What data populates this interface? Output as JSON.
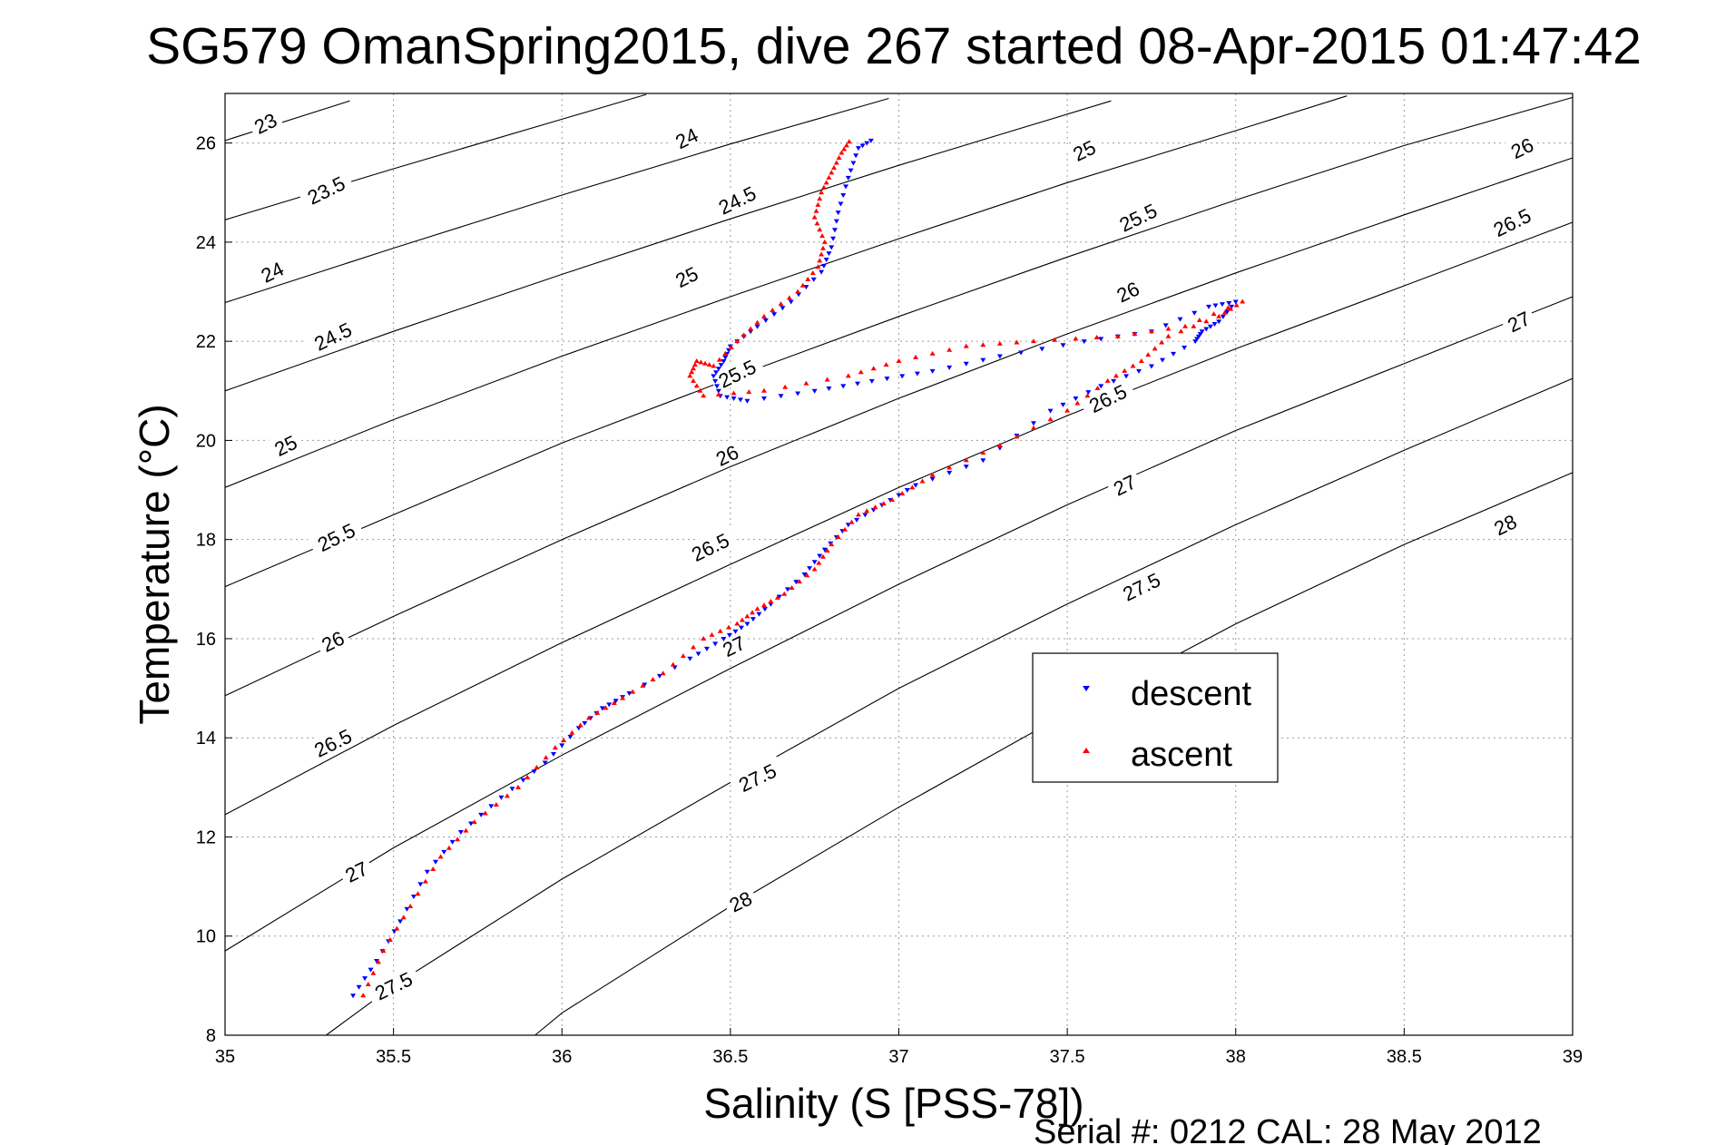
{
  "chart_data": {
    "type": "scatter",
    "title": "SG579 OmanSpring2015, dive 267 started 08-Apr-2015 01:47:42",
    "xlabel": "Salinity (S [PSS-78])",
    "ylabel": "Temperature (°C)",
    "xlim": [
      35,
      39
    ],
    "ylim": [
      8,
      27
    ],
    "x_ticks": [
      "35",
      "35.5",
      "36",
      "36.5",
      "37",
      "37.5",
      "38",
      "38.5",
      "39"
    ],
    "y_ticks": [
      "8",
      "10",
      "12",
      "14",
      "16",
      "18",
      "20",
      "22",
      "24",
      "26"
    ],
    "grid": true,
    "legend_position": "right",
    "series": [
      {
        "name": "descent",
        "color": "#0000ff",
        "marker": "triangle-down",
        "points": [
          [
            35.38,
            8.8
          ],
          [
            35.45,
            9.5
          ],
          [
            35.52,
            10.3
          ],
          [
            35.6,
            11.3
          ],
          [
            35.7,
            12.1
          ],
          [
            35.82,
            12.8
          ],
          [
            35.95,
            13.5
          ],
          [
            36.05,
            14.2
          ],
          [
            36.12,
            14.6
          ],
          [
            36.2,
            14.9
          ],
          [
            36.38,
            15.6
          ],
          [
            36.48,
            16.0
          ],
          [
            36.55,
            16.3
          ],
          [
            36.62,
            16.7
          ],
          [
            36.72,
            17.3
          ],
          [
            36.78,
            17.8
          ],
          [
            36.85,
            18.3
          ],
          [
            36.95,
            18.7
          ],
          [
            37.05,
            19.1
          ],
          [
            37.25,
            19.6
          ],
          [
            37.45,
            20.6
          ],
          [
            37.6,
            21.1
          ],
          [
            37.75,
            21.5
          ],
          [
            37.88,
            22.0
          ],
          [
            37.9,
            22.2
          ],
          [
            37.95,
            22.4
          ],
          [
            38.0,
            22.8
          ],
          [
            37.92,
            22.7
          ],
          [
            37.75,
            22.2
          ],
          [
            37.55,
            22.0
          ],
          [
            37.3,
            21.7
          ],
          [
            37.1,
            21.4
          ],
          [
            36.92,
            21.2
          ],
          [
            36.75,
            21.0
          ],
          [
            36.55,
            20.8
          ],
          [
            36.47,
            20.9
          ],
          [
            36.45,
            21.3
          ],
          [
            36.48,
            21.6
          ],
          [
            36.5,
            21.9
          ],
          [
            36.58,
            22.3
          ],
          [
            36.68,
            22.8
          ],
          [
            36.77,
            23.4
          ],
          [
            36.8,
            23.9
          ],
          [
            36.82,
            24.6
          ],
          [
            36.85,
            25.3
          ],
          [
            36.88,
            25.9
          ],
          [
            36.93,
            26.1
          ]
        ]
      },
      {
        "name": "ascent",
        "color": "#ff0000",
        "marker": "triangle-up",
        "points": [
          [
            35.41,
            8.8
          ],
          [
            35.47,
            9.7
          ],
          [
            35.55,
            10.6
          ],
          [
            35.64,
            11.6
          ],
          [
            35.74,
            12.3
          ],
          [
            35.87,
            13.0
          ],
          [
            35.98,
            13.8
          ],
          [
            36.08,
            14.4
          ],
          [
            36.18,
            14.8
          ],
          [
            36.3,
            15.3
          ],
          [
            36.42,
            16.0
          ],
          [
            36.52,
            16.3
          ],
          [
            36.58,
            16.6
          ],
          [
            36.66,
            16.9
          ],
          [
            36.75,
            17.4
          ],
          [
            36.8,
            17.9
          ],
          [
            36.88,
            18.5
          ],
          [
            36.98,
            18.8
          ],
          [
            37.1,
            19.3
          ],
          [
            37.3,
            19.9
          ],
          [
            37.5,
            20.6
          ],
          [
            37.62,
            21.2
          ],
          [
            37.72,
            21.6
          ],
          [
            37.8,
            22.1
          ],
          [
            37.95,
            22.5
          ],
          [
            38.02,
            22.8
          ],
          [
            37.85,
            22.3
          ],
          [
            37.65,
            22.1
          ],
          [
            37.4,
            22.0
          ],
          [
            37.2,
            21.9
          ],
          [
            37.0,
            21.6
          ],
          [
            36.85,
            21.3
          ],
          [
            36.6,
            21.0
          ],
          [
            36.42,
            20.9
          ],
          [
            36.38,
            21.3
          ],
          [
            36.4,
            21.6
          ],
          [
            36.45,
            21.5
          ],
          [
            36.52,
            22.0
          ],
          [
            36.6,
            22.5
          ],
          [
            36.7,
            23.0
          ],
          [
            36.76,
            23.5
          ],
          [
            36.78,
            24.0
          ],
          [
            36.75,
            24.5
          ],
          [
            36.77,
            25.0
          ],
          [
            36.8,
            25.4
          ],
          [
            36.83,
            25.8
          ],
          [
            36.86,
            26.1
          ]
        ]
      }
    ],
    "contours": [
      {
        "label": "23",
        "points": [
          [
            35.0,
            26.05
          ],
          [
            35.37,
            26.85
          ]
        ]
      },
      {
        "label": "23.5",
        "points": [
          [
            35.0,
            24.45
          ],
          [
            35.5,
            25.48
          ],
          [
            36.0,
            26.48
          ],
          [
            36.25,
            26.98
          ]
        ]
      },
      {
        "label": "24",
        "points": [
          [
            35.0,
            22.78
          ],
          [
            35.5,
            23.88
          ],
          [
            36.0,
            24.95
          ],
          [
            36.5,
            25.98
          ],
          [
            36.97,
            26.9
          ]
        ]
      },
      {
        "label": "24.5",
        "points": [
          [
            35.0,
            21.0
          ],
          [
            35.5,
            22.2
          ],
          [
            36.0,
            23.35
          ],
          [
            36.5,
            24.47
          ],
          [
            37.0,
            25.55
          ],
          [
            37.63,
            26.85
          ]
        ]
      },
      {
        "label": "25",
        "points": [
          [
            35.0,
            19.05
          ],
          [
            35.5,
            20.42
          ],
          [
            36.0,
            21.7
          ],
          [
            36.5,
            22.9
          ],
          [
            37.0,
            24.07
          ],
          [
            37.5,
            25.2
          ],
          [
            38.0,
            26.25
          ],
          [
            38.33,
            26.95
          ]
        ]
      },
      {
        "label": "25.5",
        "points": [
          [
            35.0,
            17.05
          ],
          [
            35.5,
            18.5
          ],
          [
            36.0,
            19.95
          ],
          [
            36.5,
            21.25
          ],
          [
            37.0,
            22.5
          ],
          [
            37.5,
            23.7
          ],
          [
            38.0,
            24.85
          ],
          [
            38.5,
            25.95
          ],
          [
            39.0,
            26.92
          ]
        ]
      },
      {
        "label": "26",
        "points": [
          [
            35.0,
            14.85
          ],
          [
            35.5,
            16.45
          ],
          [
            36.0,
            18.0
          ],
          [
            36.5,
            19.47
          ],
          [
            37.0,
            20.85
          ],
          [
            37.5,
            22.15
          ],
          [
            38.0,
            23.38
          ],
          [
            38.5,
            24.55
          ],
          [
            39.0,
            25.7
          ]
        ]
      },
      {
        "label": "26.5",
        "points": [
          [
            35.0,
            12.45
          ],
          [
            35.5,
            14.25
          ],
          [
            36.0,
            15.92
          ],
          [
            36.5,
            17.5
          ],
          [
            37.0,
            19.05
          ],
          [
            37.5,
            20.5
          ],
          [
            38.0,
            21.85
          ],
          [
            38.5,
            23.12
          ],
          [
            39.0,
            24.4
          ]
        ]
      },
      {
        "label": "27",
        "points": [
          [
            35.0,
            9.7
          ],
          [
            35.5,
            11.78
          ],
          [
            36.0,
            13.65
          ],
          [
            36.5,
            15.4
          ],
          [
            37.0,
            17.1
          ],
          [
            37.5,
            18.7
          ],
          [
            38.0,
            20.2
          ],
          [
            38.5,
            21.55
          ],
          [
            39.0,
            22.9
          ]
        ]
      },
      {
        "label": "27.5",
        "points": [
          [
            35.3,
            8.0
          ],
          [
            35.5,
            9.0
          ],
          [
            36.0,
            11.15
          ],
          [
            36.5,
            13.1
          ],
          [
            37.0,
            15.0
          ],
          [
            37.5,
            16.7
          ],
          [
            38.0,
            18.3
          ],
          [
            38.5,
            19.8
          ],
          [
            39.0,
            21.25
          ]
        ]
      },
      {
        "label": "28",
        "points": [
          [
            35.92,
            8.0
          ],
          [
            36.0,
            8.45
          ],
          [
            36.5,
            10.6
          ],
          [
            37.0,
            12.6
          ],
          [
            37.5,
            14.5
          ],
          [
            38.0,
            16.3
          ],
          [
            38.5,
            17.9
          ],
          [
            39.0,
            19.35
          ]
        ]
      }
    ],
    "contour_labels": [
      {
        "text": "23",
        "x": 35.12,
        "y": 26.4
      },
      {
        "text": "23.5",
        "x": 35.3,
        "y": 25.05
      },
      {
        "text": "24",
        "x": 35.14,
        "y": 23.4
      },
      {
        "text": "24.5",
        "x": 35.32,
        "y": 22.1
      },
      {
        "text": "25",
        "x": 35.18,
        "y": 19.9
      },
      {
        "text": "25.5",
        "x": 35.33,
        "y": 18.05
      },
      {
        "text": "26",
        "x": 35.32,
        "y": 15.95
      },
      {
        "text": "26.5",
        "x": 35.32,
        "y": 13.9
      },
      {
        "text": "27",
        "x": 35.39,
        "y": 11.3
      },
      {
        "text": "27.5",
        "x": 35.5,
        "y": 9.0
      },
      {
        "text": "24",
        "x": 36.37,
        "y": 26.1
      },
      {
        "text": "24.5",
        "x": 36.52,
        "y": 24.85
      },
      {
        "text": "25",
        "x": 36.37,
        "y": 23.3
      },
      {
        "text": "25.5",
        "x": 36.52,
        "y": 21.35
      },
      {
        "text": "26",
        "x": 36.49,
        "y": 19.7
      },
      {
        "text": "26.5",
        "x": 36.44,
        "y": 17.85
      },
      {
        "text": "27",
        "x": 36.51,
        "y": 15.85
      },
      {
        "text": "27.5",
        "x": 36.58,
        "y": 13.2
      },
      {
        "text": "28",
        "x": 36.53,
        "y": 10.7
      },
      {
        "text": "25",
        "x": 37.55,
        "y": 25.85
      },
      {
        "text": "25.5",
        "x": 37.71,
        "y": 24.5
      },
      {
        "text": "26",
        "x": 37.68,
        "y": 23.0
      },
      {
        "text": "26.5",
        "x": 37.62,
        "y": 20.85
      },
      {
        "text": "27",
        "x": 37.67,
        "y": 19.1
      },
      {
        "text": "27.5",
        "x": 37.72,
        "y": 17.05
      },
      {
        "text": "26",
        "x": 38.85,
        "y": 25.9
      },
      {
        "text": "26.5",
        "x": 38.82,
        "y": 24.4
      },
      {
        "text": "27",
        "x": 38.84,
        "y": 22.4
      },
      {
        "text": "28",
        "x": 38.8,
        "y": 18.3
      }
    ]
  },
  "footer": {
    "serial_text": "Serial #: 0212  CAL: 28 May 2012"
  }
}
